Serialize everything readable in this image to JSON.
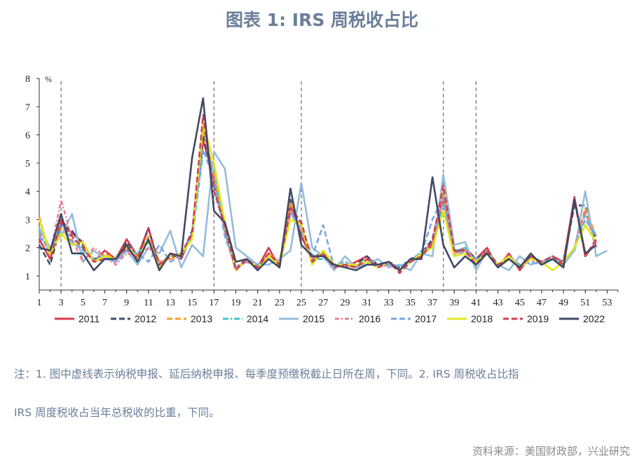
{
  "title": "图表 1:  IRS 周税收占比",
  "note_line1": "注：1. 图中虚线表示纳税申报、延后纳税申报、每季度预缴税截止日所在周，下同。2. IRS 周税收占比指",
  "note_line2": "IRS 周度税收占当年总税收的比重，下同。",
  "source": "资料来源：美国财政部，兴业研究",
  "chart_data": {
    "type": "line",
    "ylabel": "%",
    "xlim": [
      1,
      54
    ],
    "ylim": [
      0.5,
      8
    ],
    "x_ticks": [
      1,
      3,
      5,
      7,
      9,
      11,
      13,
      15,
      17,
      19,
      21,
      23,
      25,
      27,
      29,
      31,
      33,
      35,
      37,
      39,
      41,
      43,
      45,
      47,
      49,
      51,
      53
    ],
    "y_ticks": [
      1,
      2,
      3,
      4,
      5,
      6,
      7,
      8
    ],
    "reference_weeks": [
      3,
      17,
      25,
      38,
      41
    ],
    "legend_position": "bottom",
    "series": [
      {
        "name": "2011",
        "color": "#d9394b",
        "dash": "solid",
        "values": [
          2.3,
          1.6,
          3.0,
          2.5,
          2.2,
          1.5,
          1.9,
          1.6,
          2.3,
          1.7,
          2.7,
          1.3,
          1.8,
          1.6,
          2.5,
          5.8,
          4.5,
          2.6,
          1.2,
          1.6,
          1.3,
          2.0,
          1.3,
          3.6,
          2.4,
          1.6,
          1.8,
          1.4,
          1.3,
          1.5,
          1.7,
          1.3,
          1.5,
          1.2,
          1.6,
          1.7,
          2.1,
          3.8,
          1.8,
          2.0,
          1.6,
          2.0,
          1.3,
          1.8,
          1.2,
          1.7,
          1.5,
          1.7,
          1.5,
          3.8,
          1.7,
          2.2
        ]
      },
      {
        "name": "2012",
        "color": "#3d4f6e",
        "dash": "8,4",
        "values": [
          2.1,
          1.4,
          2.8,
          2.6,
          2.1,
          1.6,
          1.7,
          1.5,
          2.2,
          1.6,
          2.7,
          1.3,
          1.7,
          1.7,
          2.6,
          6.0,
          4.2,
          2.7,
          1.3,
          1.6,
          1.3,
          1.8,
          1.4,
          3.7,
          2.5,
          1.7,
          1.8,
          1.3,
          1.4,
          1.4,
          1.7,
          1.4,
          1.5,
          1.3,
          1.6,
          1.8,
          2.3,
          4.0,
          1.9,
          1.9,
          1.6,
          1.9,
          1.3,
          1.7,
          1.3,
          1.7,
          1.5,
          1.6,
          1.5,
          3.5,
          3.5,
          2.2
        ]
      },
      {
        "name": "2013",
        "color": "#f5a025",
        "dash": "8,4",
        "values": [
          3.1,
          1.7,
          2.7,
          2.2,
          2.0,
          1.5,
          1.8,
          1.6,
          2.0,
          1.7,
          2.4,
          1.5,
          1.6,
          1.7,
          2.4,
          6.2,
          4.6,
          2.6,
          1.3,
          1.5,
          1.3,
          1.8,
          1.5,
          3.6,
          2.8,
          1.5,
          1.9,
          1.4,
          1.4,
          1.3,
          1.6,
          1.3,
          1.5,
          1.2,
          1.5,
          1.7,
          2.1,
          4.0,
          1.8,
          1.9,
          1.5,
          1.9,
          1.4,
          1.7,
          1.3,
          1.6,
          1.5,
          1.6,
          1.4,
          2.0,
          3.4,
          2.4
        ]
      },
      {
        "name": "2014",
        "color": "#40c4d0",
        "dash": "8,3,2,3",
        "values": [
          2.6,
          1.8,
          2.6,
          2.4,
          1.9,
          1.6,
          1.7,
          1.5,
          1.9,
          1.8,
          2.2,
          1.4,
          1.7,
          1.8,
          2.3,
          5.4,
          4.9,
          2.5,
          1.3,
          1.5,
          1.3,
          1.7,
          1.4,
          3.3,
          2.6,
          1.6,
          1.6,
          1.4,
          1.5,
          1.3,
          1.6,
          1.3,
          1.5,
          1.2,
          1.5,
          1.9,
          2.0,
          3.5,
          1.9,
          2.0,
          1.5,
          1.8,
          1.3,
          1.7,
          1.3,
          1.6,
          1.5,
          1.6,
          1.5,
          1.9,
          3.2,
          2.4
        ]
      },
      {
        "name": "2015",
        "color": "#95bcdb",
        "dash": "solid",
        "values": [
          2.7,
          2.0,
          2.4,
          3.2,
          1.5,
          1.9,
          1.6,
          1.5,
          1.9,
          1.4,
          2.0,
          1.8,
          2.6,
          1.3,
          2.1,
          1.7,
          5.4,
          4.8,
          2.0,
          1.7,
          1.4,
          1.4,
          1.6,
          1.9,
          4.3,
          2.0,
          1.7,
          1.2,
          1.7,
          1.3,
          1.4,
          1.6,
          1.3,
          1.4,
          1.2,
          1.8,
          1.7,
          4.6,
          2.1,
          2.2,
          1.2,
          1.9,
          1.4,
          1.2,
          1.7,
          1.4,
          1.5,
          1.7,
          1.4,
          1.9,
          4.0,
          1.7,
          1.9
        ]
      },
      {
        "name": "2016",
        "color": "#f07c93",
        "dash": "6,3,2,3",
        "values": [
          2.5,
          1.8,
          3.7,
          2.3,
          1.5,
          2.0,
          1.7,
          1.4,
          1.8,
          1.7,
          2.0,
          1.5,
          1.6,
          1.8,
          2.4,
          6.5,
          4.1,
          2.7,
          1.3,
          1.5,
          1.3,
          1.7,
          1.4,
          3.3,
          2.6,
          1.6,
          1.8,
          1.4,
          1.4,
          1.3,
          1.5,
          1.3,
          1.4,
          1.2,
          1.5,
          1.8,
          2.2,
          3.7,
          1.8,
          1.9,
          1.5,
          1.8,
          1.4,
          1.7,
          1.3,
          1.6,
          1.4,
          1.6,
          1.5,
          2.0,
          3.3,
          2.0
        ]
      },
      {
        "name": "2017",
        "color": "#7aa6e0",
        "dash": "8,4",
        "values": [
          2.4,
          1.9,
          2.9,
          2.2,
          1.9,
          1.6,
          1.7,
          1.5,
          1.9,
          1.8,
          1.5,
          2.1,
          1.5,
          1.7,
          2.5,
          5.5,
          4.4,
          2.4,
          1.3,
          1.5,
          1.4,
          1.7,
          1.4,
          3.2,
          2.7,
          1.7,
          2.8,
          1.3,
          1.5,
          1.3,
          1.5,
          1.4,
          1.4,
          1.3,
          1.6,
          1.8,
          3.0,
          3.8,
          1.7,
          1.9,
          1.6,
          1.8,
          1.3,
          1.7,
          1.4,
          1.5,
          1.4,
          1.6,
          1.5,
          2.0,
          3.0,
          2.4
        ]
      },
      {
        "name": "2018",
        "color": "#e1e81c",
        "dash": "solid",
        "values": [
          3.0,
          1.8,
          2.5,
          2.1,
          2.2,
          1.5,
          1.7,
          1.6,
          2.1,
          1.6,
          2.3,
          1.3,
          1.7,
          1.8,
          2.3,
          6.4,
          5.0,
          2.9,
          1.2,
          1.6,
          1.3,
          1.7,
          1.4,
          3.0,
          2.8,
          1.4,
          1.9,
          1.4,
          1.4,
          1.4,
          1.5,
          1.3,
          1.5,
          1.2,
          1.5,
          1.8,
          2.0,
          3.3,
          1.7,
          1.8,
          1.5,
          1.8,
          1.4,
          1.7,
          1.3,
          1.6,
          1.5,
          1.2,
          1.5,
          2.0,
          2.8,
          2.2
        ]
      },
      {
        "name": "2019",
        "color": "#d33d4d",
        "dash": "8,4",
        "values": [
          2.3,
          1.6,
          2.9,
          2.4,
          2.0,
          1.5,
          1.6,
          1.6,
          2.0,
          1.6,
          2.7,
          1.4,
          1.7,
          1.8,
          2.5,
          6.7,
          4.0,
          2.8,
          1.2,
          1.6,
          1.3,
          1.8,
          1.4,
          3.4,
          2.9,
          1.5,
          1.8,
          1.3,
          1.4,
          1.3,
          1.6,
          1.3,
          1.5,
          1.1,
          1.5,
          1.7,
          2.2,
          4.2,
          1.9,
          1.9,
          1.4,
          1.9,
          1.4,
          1.6,
          1.3,
          1.7,
          1.5,
          1.7,
          1.4,
          3.7,
          1.7,
          2.3
        ]
      },
      {
        "name": "2022",
        "color": "#3e4a64",
        "dash": "solid",
        "values": [
          2.0,
          1.9,
          3.2,
          1.8,
          1.8,
          1.2,
          1.6,
          1.6,
          2.1,
          1.5,
          2.3,
          1.2,
          1.8,
          1.7,
          5.2,
          7.3,
          3.3,
          2.9,
          1.5,
          1.6,
          1.2,
          1.6,
          1.3,
          4.1,
          2.1,
          1.7,
          1.7,
          1.4,
          1.3,
          1.2,
          1.4,
          1.4,
          1.5,
          1.2,
          1.6,
          1.6,
          4.5,
          2.1,
          1.3,
          1.7,
          1.4,
          1.8,
          1.3,
          1.6,
          1.3,
          1.8,
          1.4,
          1.6,
          1.3,
          3.7,
          1.8,
          2.1
        ]
      }
    ]
  }
}
